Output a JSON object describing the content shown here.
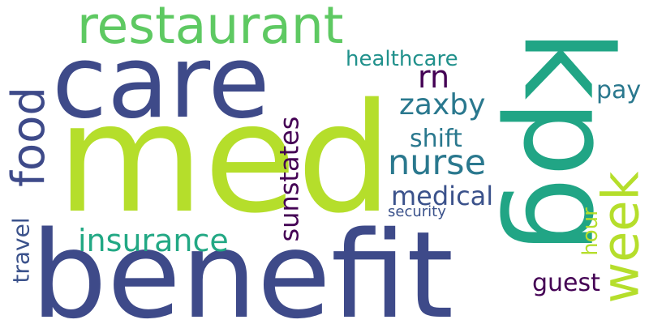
{
  "words": [
    {
      "key": "med",
      "text": "med",
      "color": "#b5de2b",
      "orientation": "horizontal"
    },
    {
      "key": "benefit",
      "text": "benefit",
      "color": "#3e4a89",
      "orientation": "horizontal"
    },
    {
      "key": "care",
      "text": "care",
      "color": "#3e4a89",
      "orientation": "horizontal"
    },
    {
      "key": "restaurant",
      "text": "restaurant",
      "color": "#5ec962",
      "orientation": "horizontal"
    },
    {
      "key": "kpg",
      "text": "kpg",
      "color": "#21a585",
      "orientation": "rotated"
    },
    {
      "key": "food",
      "text": "food",
      "color": "#3e4a89",
      "orientation": "rotated"
    },
    {
      "key": "week",
      "text": "week",
      "color": "#b5de2b",
      "orientation": "rotated"
    },
    {
      "key": "insurance",
      "text": "insurance",
      "color": "#22a884",
      "orientation": "horizontal"
    },
    {
      "key": "nurse",
      "text": "nurse",
      "color": "#2a788e",
      "orientation": "horizontal"
    },
    {
      "key": "zaxby",
      "text": "zaxby",
      "color": "#2a788e",
      "orientation": "horizontal"
    },
    {
      "key": "sunstates",
      "text": "sunstates",
      "color": "#440154",
      "orientation": "rotated"
    },
    {
      "key": "medical",
      "text": "medical",
      "color": "#3b528b",
      "orientation": "horizontal"
    },
    {
      "key": "healthcare",
      "text": "healthcare",
      "color": "#21918c",
      "orientation": "horizontal"
    },
    {
      "key": "rn",
      "text": "rn",
      "color": "#440154",
      "orientation": "horizontal"
    },
    {
      "key": "shift",
      "text": "shift",
      "color": "#2a788e",
      "orientation": "horizontal"
    },
    {
      "key": "guest",
      "text": "guest",
      "color": "#440154",
      "orientation": "horizontal"
    },
    {
      "key": "travel",
      "text": "travel",
      "color": "#3b528b",
      "orientation": "rotated"
    },
    {
      "key": "pay",
      "text": "pay",
      "color": "#2a788e",
      "orientation": "horizontal"
    },
    {
      "key": "hour",
      "text": "hour",
      "color": "#b5de2b",
      "orientation": "rotated"
    },
    {
      "key": "security",
      "text": "security",
      "color": "#3b528b",
      "orientation": "horizontal"
    }
  ]
}
